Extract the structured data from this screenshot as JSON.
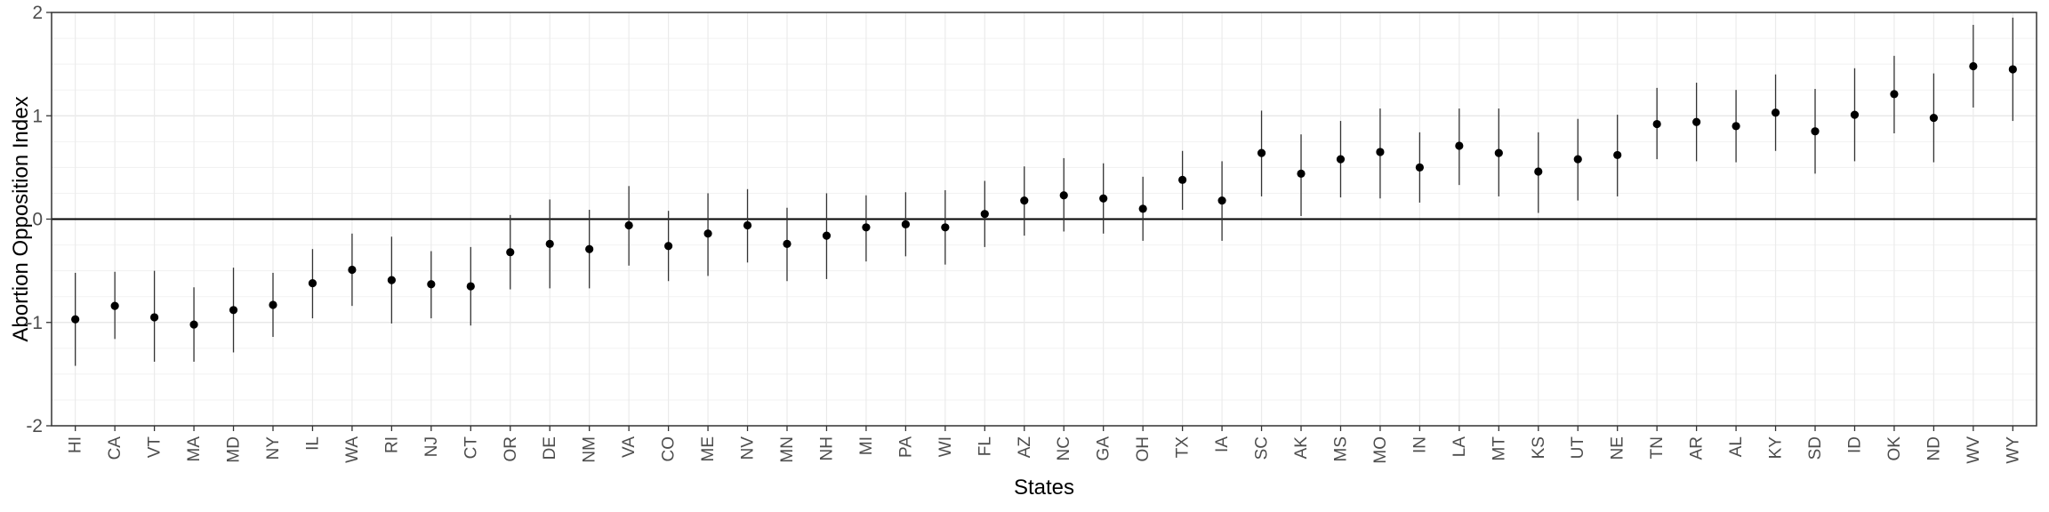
{
  "chart_data": {
    "type": "scatter",
    "xlabel": "States",
    "ylabel": "Abortion Opposition Index",
    "ylim": [
      -2,
      2
    ],
    "y_ticks": [
      -2,
      -1,
      0,
      1,
      2
    ],
    "grid": true,
    "reference_line": 0,
    "categories": [
      "HI",
      "CA",
      "VT",
      "MA",
      "MD",
      "NY",
      "IL",
      "WA",
      "RI",
      "NJ",
      "CT",
      "OR",
      "DE",
      "NM",
      "VA",
      "CO",
      "ME",
      "NV",
      "MN",
      "NH",
      "MI",
      "PA",
      "WI",
      "FL",
      "AZ",
      "NC",
      "GA",
      "OH",
      "TX",
      "IA",
      "SC",
      "AK",
      "MS",
      "MO",
      "IN",
      "LA",
      "MT",
      "KS",
      "UT",
      "NE",
      "TN",
      "AR",
      "AL",
      "KY",
      "SD",
      "ID",
      "OK",
      "ND",
      "WV",
      "WY"
    ],
    "series": [
      {
        "values": [
          -0.97,
          -0.84,
          -0.95,
          -1.02,
          -0.88,
          -0.83,
          -0.62,
          -0.49,
          -0.59,
          -0.63,
          -0.65,
          -0.32,
          -0.24,
          -0.29,
          -0.06,
          -0.26,
          -0.14,
          -0.06,
          -0.24,
          -0.16,
          -0.08,
          -0.05,
          -0.08,
          0.05,
          0.18,
          0.23,
          0.2,
          0.1,
          0.38,
          0.18,
          0.64,
          0.44,
          0.58,
          0.65,
          0.5,
          0.71,
          0.64,
          0.46,
          0.58,
          0.62,
          0.92,
          0.94,
          0.9,
          1.03,
          0.85,
          1.01,
          1.21,
          0.98,
          1.48,
          1.45
        ],
        "lower": [
          -1.42,
          -1.16,
          -1.38,
          -1.38,
          -1.29,
          -1.14,
          -0.96,
          -0.84,
          -1.01,
          -0.96,
          -1.03,
          -0.68,
          -0.67,
          -0.67,
          -0.45,
          -0.6,
          -0.55,
          -0.42,
          -0.6,
          -0.58,
          -0.41,
          -0.36,
          -0.44,
          -0.27,
          -0.16,
          -0.12,
          -0.14,
          -0.21,
          0.09,
          -0.21,
          0.22,
          0.03,
          0.21,
          0.2,
          0.16,
          0.33,
          0.22,
          0.06,
          0.18,
          0.22,
          0.58,
          0.56,
          0.55,
          0.66,
          0.44,
          0.56,
          0.83,
          0.55,
          1.08,
          0.95
        ],
        "upper": [
          -0.52,
          -0.51,
          -0.5,
          -0.66,
          -0.47,
          -0.52,
          -0.29,
          -0.14,
          -0.17,
          -0.31,
          -0.27,
          0.04,
          0.19,
          0.09,
          0.32,
          0.08,
          0.25,
          0.29,
          0.11,
          0.25,
          0.23,
          0.26,
          0.28,
          0.37,
          0.51,
          0.59,
          0.54,
          0.41,
          0.66,
          0.56,
          1.05,
          0.82,
          0.95,
          1.07,
          0.84,
          1.07,
          1.07,
          0.84,
          0.97,
          1.01,
          1.27,
          1.32,
          1.25,
          1.4,
          1.26,
          1.46,
          1.58,
          1.41,
          1.88,
          1.95
        ]
      }
    ]
  }
}
